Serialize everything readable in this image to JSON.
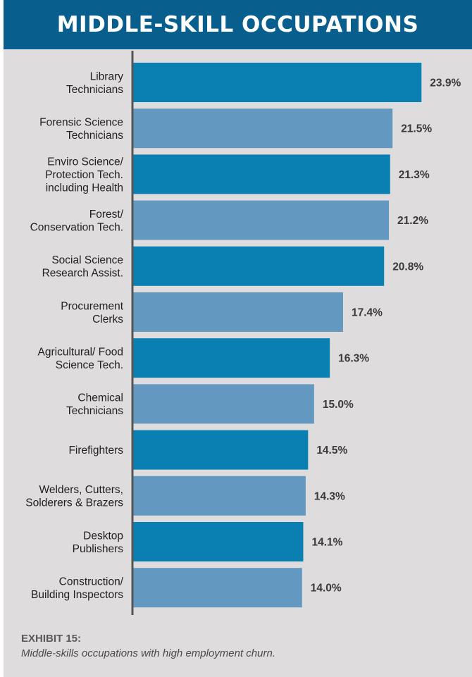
{
  "title": "MIDDLE-SKILL OCCUPATIONS",
  "caption": {
    "exhibit": "EXHIBIT 15:",
    "text": "Middle-skills occupations with high employment churn."
  },
  "colors": {
    "header": "#085f8e",
    "bar_dark": "#0a7fb1",
    "bar_light": "#6399c1",
    "background": "#dedcdd",
    "axis": "#555555"
  },
  "chart_data": {
    "type": "bar",
    "orientation": "horizontal",
    "categories": [
      [
        "Library",
        "Technicians"
      ],
      [
        "Forensic Science",
        "Technicians"
      ],
      [
        "Enviro Science/",
        "Protection Tech.",
        "including Health"
      ],
      [
        "Forest/",
        "Conservation Tech."
      ],
      [
        "Social Science",
        "Research Assist."
      ],
      [
        "Procurement",
        "Clerks"
      ],
      [
        "Agricultural/ Food",
        "Science Tech."
      ],
      [
        "Chemical",
        "Technicians"
      ],
      [
        "Firefighters"
      ],
      [
        "Welders, Cutters,",
        "Solderers & Brazers"
      ],
      [
        "Desktop",
        "Publishers"
      ],
      [
        "Construction/",
        "Building Inspectors"
      ]
    ],
    "values": [
      23.9,
      21.5,
      21.3,
      21.2,
      20.8,
      17.4,
      16.3,
      15.0,
      14.5,
      14.3,
      14.1,
      14.0
    ],
    "value_labels": [
      "23.9%",
      "21.5%",
      "21.3%",
      "21.2%",
      "20.8%",
      "17.4%",
      "16.3%",
      "15.0%",
      "14.5%",
      "14.3%",
      "14.1%",
      "14.0%"
    ],
    "xlim": [
      0,
      24
    ],
    "bar_color_pattern": "alternating dark / light blue",
    "grid": false,
    "legend": "none"
  }
}
